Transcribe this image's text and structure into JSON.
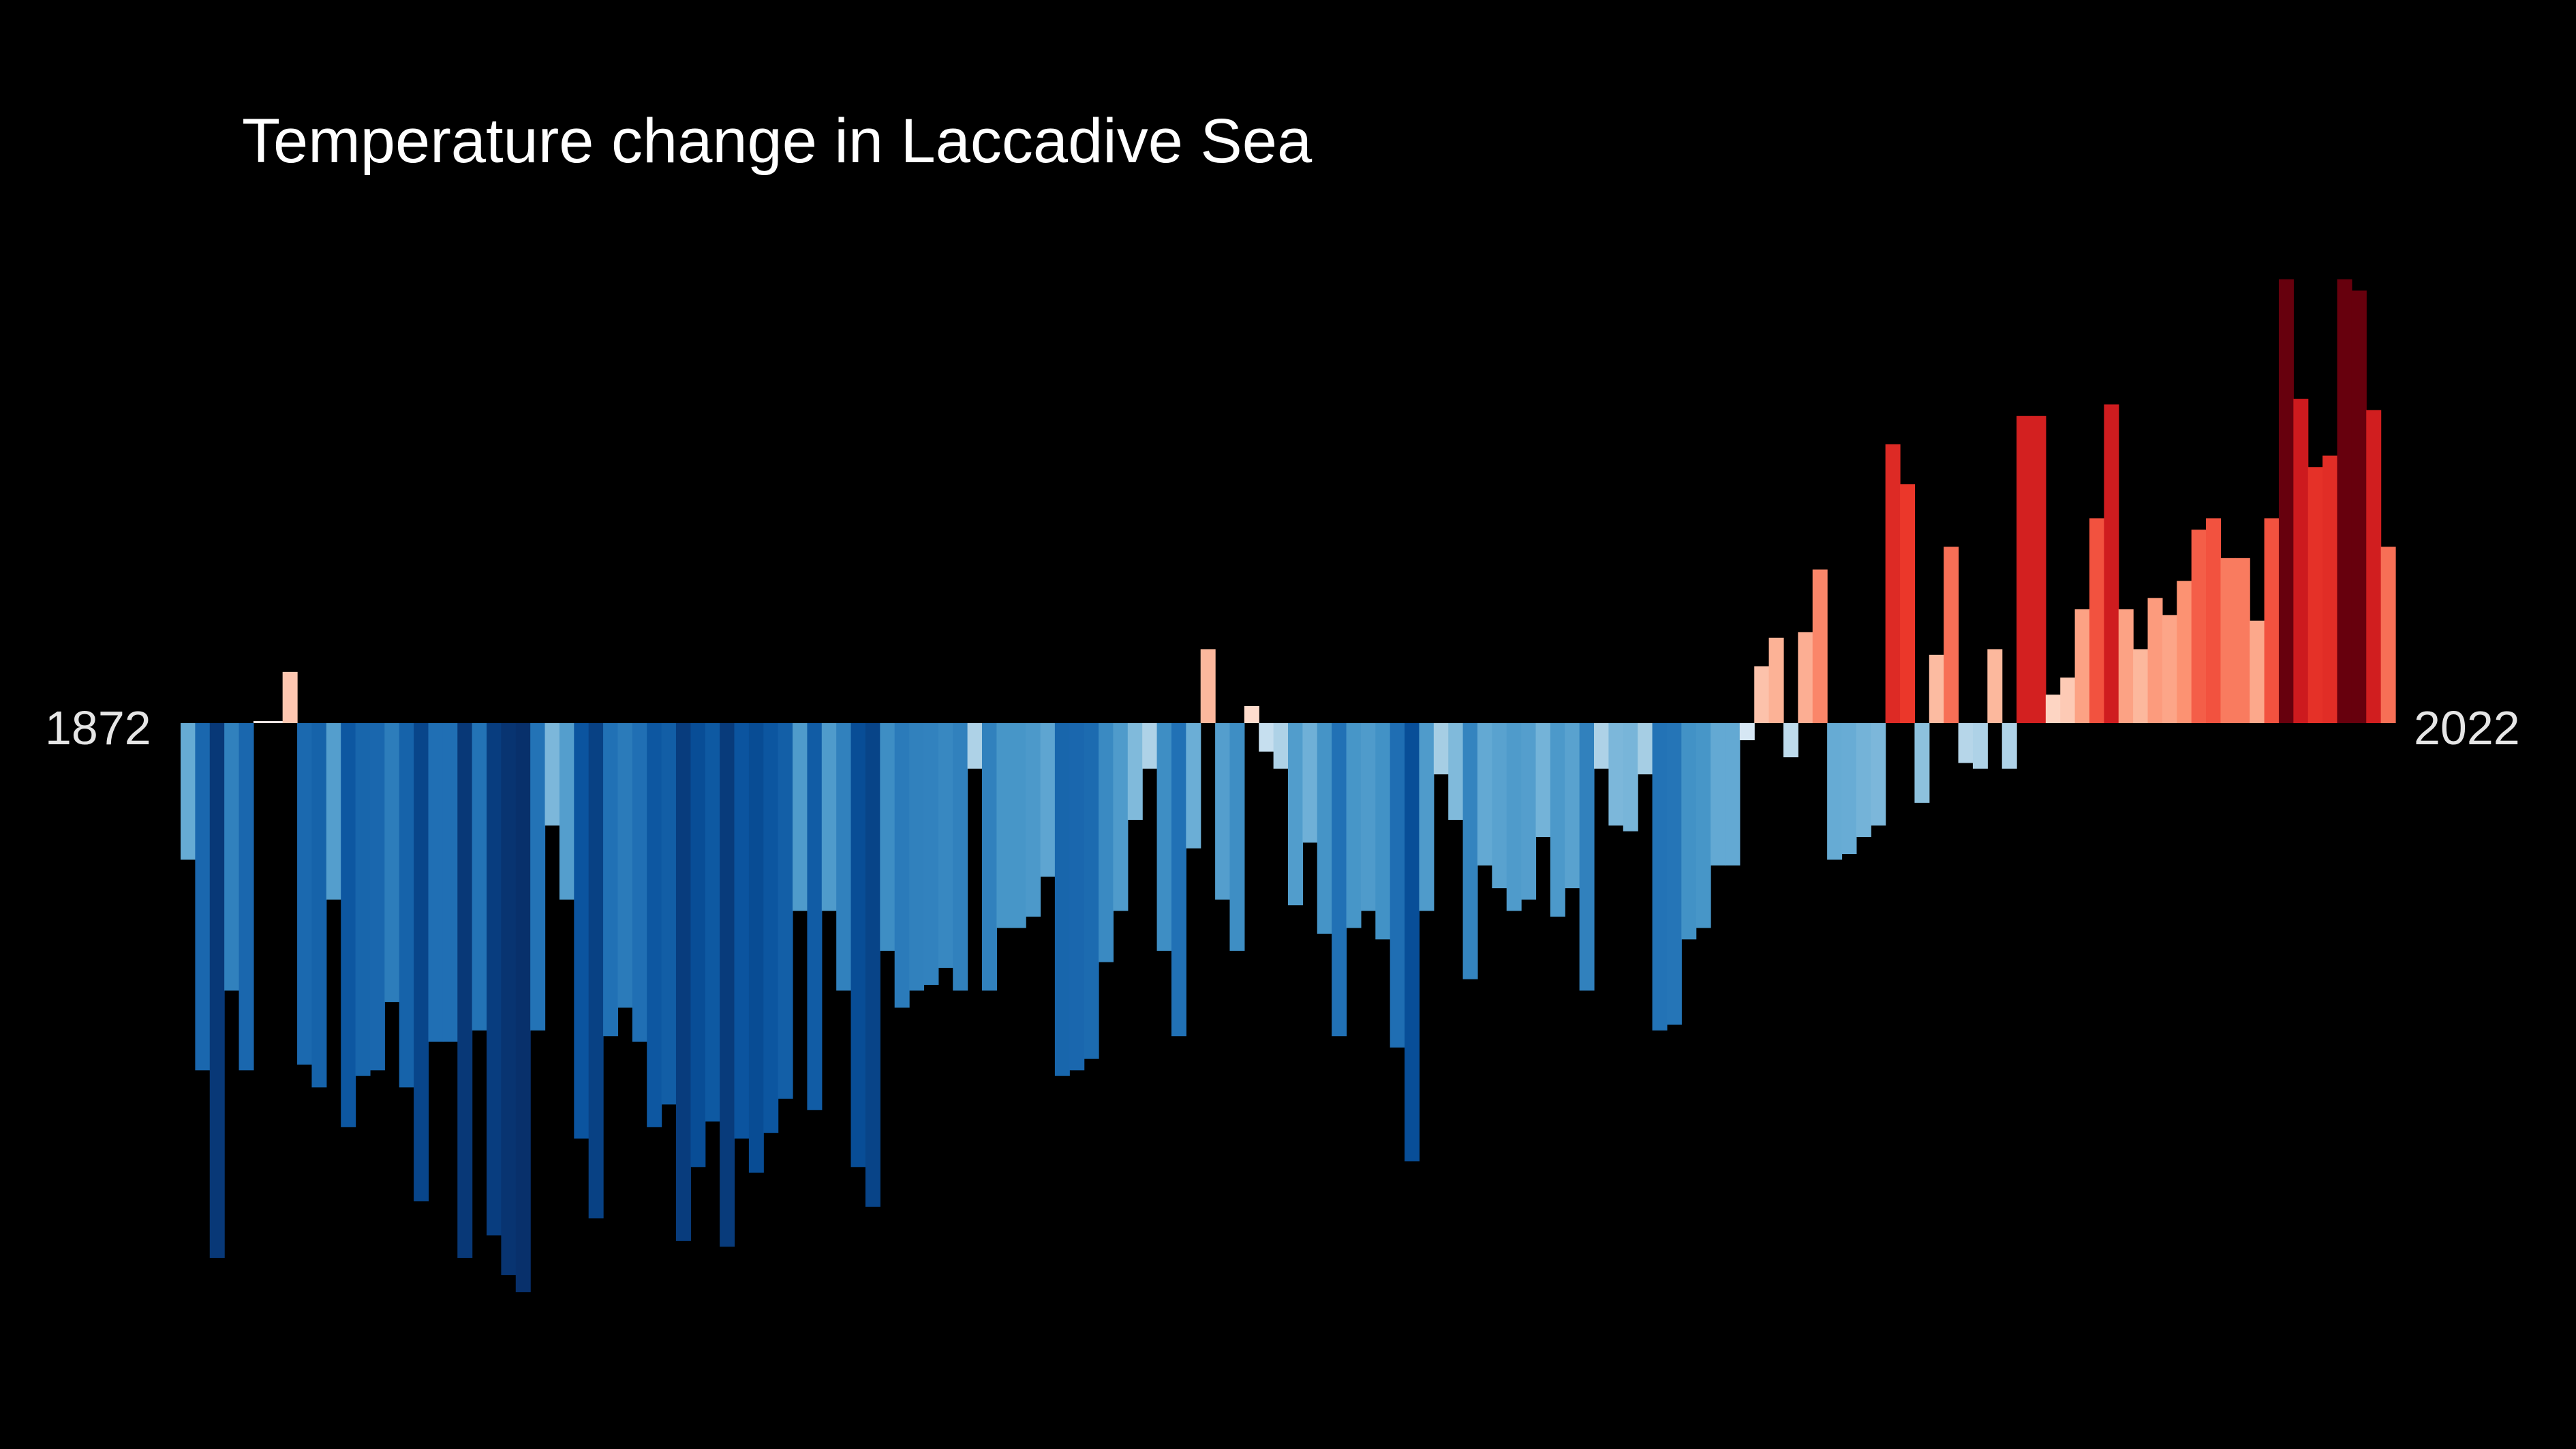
{
  "chart_data": {
    "type": "bar",
    "title": "Temperature change in Laccadive Sea",
    "x_start_label": "1872",
    "x_end_label": "2022",
    "year_start": 1872,
    "year_end": 2022,
    "background": "#000000",
    "colormap": "RdBu_r (blue = cooler than average, red = warmer than average)",
    "axes_visible": false,
    "grid": false,
    "ylim": [
      -1.0,
      0.81
    ],
    "values": [
      -0.24,
      -0.61,
      -0.94,
      -0.47,
      -0.61,
      0.0,
      0.0,
      0.09,
      -0.6,
      -0.64,
      -0.31,
      -0.71,
      -0.62,
      -0.61,
      -0.49,
      -0.64,
      -0.84,
      -0.56,
      -0.56,
      -0.94,
      -0.54,
      -0.9,
      -0.97,
      -1.0,
      -0.54,
      -0.18,
      -0.31,
      -0.73,
      -0.87,
      -0.55,
      -0.5,
      -0.56,
      -0.71,
      -0.67,
      -0.91,
      -0.78,
      -0.7,
      -0.92,
      -0.73,
      -0.79,
      -0.72,
      -0.66,
      -0.33,
      -0.68,
      -0.33,
      -0.47,
      -0.78,
      -0.85,
      -0.4,
      -0.5,
      -0.47,
      -0.46,
      -0.43,
      -0.47,
      -0.08,
      -0.47,
      -0.36,
      -0.36,
      -0.34,
      -0.27,
      -0.62,
      -0.61,
      -0.59,
      -0.42,
      -0.33,
      -0.17,
      -0.08,
      -0.4,
      -0.55,
      -0.22,
      0.13,
      -0.31,
      -0.4,
      0.03,
      -0.05,
      -0.08,
      -0.32,
      -0.21,
      -0.37,
      -0.55,
      -0.36,
      -0.33,
      -0.38,
      -0.57,
      -0.77,
      -0.33,
      -0.09,
      -0.17,
      -0.45,
      -0.25,
      -0.29,
      -0.33,
      -0.31,
      -0.2,
      -0.34,
      -0.29,
      -0.47,
      -0.08,
      -0.18,
      -0.19,
      -0.09,
      -0.54,
      -0.53,
      -0.38,
      -0.36,
      -0.25,
      -0.25,
      -0.03,
      0.1,
      0.15,
      -0.06,
      0.16,
      0.27,
      -0.24,
      -0.23,
      -0.2,
      -0.18,
      0.49,
      0.42,
      -0.14,
      0.12,
      0.31,
      -0.07,
      -0.08,
      0.13,
      -0.08,
      0.54,
      0.54,
      0.05,
      0.08,
      0.2,
      0.36,
      0.56,
      0.2,
      0.13,
      0.22,
      0.19,
      0.25,
      0.34,
      0.36,
      0.29,
      0.29,
      0.18,
      0.36,
      0.78,
      0.57,
      0.45,
      0.47,
      0.78,
      0.76,
      0.55,
      0.31
    ]
  }
}
